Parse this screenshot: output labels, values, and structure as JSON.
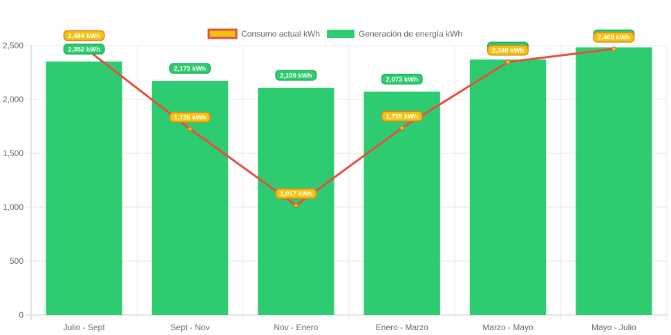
{
  "chart_data": {
    "type": "bar",
    "categories": [
      "Julio - Sept",
      "Sept - Nov",
      "Nov - Enero",
      "Enero - Marzo",
      "Marzo - Mayo",
      "Mayo - Julio"
    ],
    "series": [
      {
        "name": "Consumo actual kWh",
        "type": "line",
        "color": "#e74c3c",
        "point_color": "#f1c40f",
        "values": [
          2484,
          1726,
          1017,
          1735,
          2348,
          2469
        ],
        "labels": [
          "2,484 kWh",
          "1,726 kWh",
          "1,017 kWh",
          "1,735 kWh",
          "2,348 kWh",
          "2,469 kWh"
        ]
      },
      {
        "name": "Generación de energía kWh",
        "type": "bar",
        "color": "#2ecc71",
        "values": [
          2352,
          2173,
          2109,
          2073,
          2370,
          2484
        ],
        "labels": [
          "2,352 kWh",
          "2,173 kWh",
          "2,109 kWh",
          "2,073 kWh",
          "2,370 kWh",
          "2,484 kWh"
        ]
      }
    ],
    "yticks": [
      "0",
      "500",
      "1,000",
      "1,500",
      "2,000",
      "2,500"
    ],
    "ylim": [
      0,
      2500
    ],
    "grid": true,
    "legend": "top"
  }
}
